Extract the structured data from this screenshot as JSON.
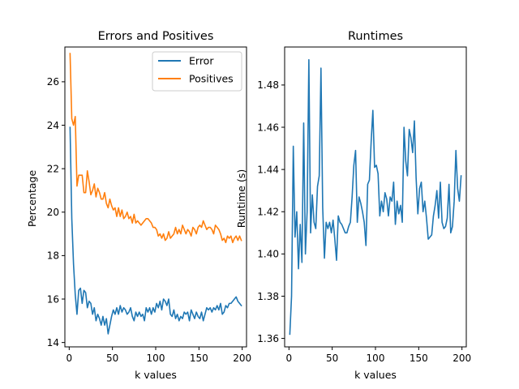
{
  "chart_data": [
    {
      "type": "line",
      "title": "Errors and Positives",
      "xlabel": "k values",
      "ylabel": "Percentage",
      "xlim": [
        -5,
        205
      ],
      "ylim": [
        13.8,
        27.6
      ],
      "xticks": [
        0,
        50,
        100,
        150,
        200
      ],
      "yticks": [
        14,
        16,
        18,
        20,
        22,
        24,
        26
      ],
      "legend": "top-right",
      "grid": false,
      "series": [
        {
          "name": "Error",
          "color": "#1f77b4",
          "x": [
            1,
            3,
            5,
            7,
            9,
            11,
            13,
            15,
            17,
            19,
            21,
            23,
            25,
            27,
            29,
            31,
            33,
            35,
            37,
            39,
            41,
            43,
            45,
            47,
            49,
            51,
            53,
            55,
            57,
            59,
            61,
            63,
            65,
            67,
            69,
            71,
            73,
            75,
            77,
            79,
            81,
            83,
            85,
            87,
            89,
            91,
            93,
            95,
            97,
            99,
            101,
            103,
            105,
            107,
            109,
            111,
            113,
            115,
            117,
            119,
            121,
            123,
            125,
            127,
            129,
            131,
            133,
            135,
            137,
            139,
            141,
            143,
            145,
            147,
            149,
            151,
            153,
            155,
            157,
            159,
            161,
            163,
            165,
            167,
            169,
            171,
            173,
            175,
            177,
            179,
            181,
            183,
            185,
            187,
            189,
            191,
            193,
            195,
            197,
            199
          ],
          "values": [
            23.9,
            19.7,
            17.6,
            16.2,
            15.3,
            16.4,
            16.5,
            15.8,
            16.4,
            16.3,
            15.6,
            15.9,
            15.8,
            15.3,
            15.6,
            15.0,
            15.3,
            15.1,
            14.8,
            15.2,
            14.8,
            15.1,
            14.4,
            14.8,
            15.2,
            15.5,
            15.3,
            15.6,
            15.3,
            15.7,
            15.4,
            15.6,
            15.5,
            15.3,
            15.4,
            15.6,
            15.2,
            15.0,
            15.4,
            15.2,
            15.4,
            15.2,
            15.3,
            15.0,
            15.6,
            15.4,
            15.6,
            15.3,
            15.6,
            15.4,
            15.8,
            15.6,
            15.9,
            15.5,
            16.0,
            15.9,
            15.7,
            16.0,
            15.3,
            15.2,
            15.5,
            15.1,
            15.3,
            15.0,
            15.2,
            15.1,
            15.4,
            15.3,
            15.4,
            15.0,
            15.5,
            15.3,
            15.1,
            15.4,
            15.2,
            15.1,
            15.4,
            15.0,
            15.3,
            15.6,
            15.5,
            15.6,
            15.4,
            15.6,
            15.5,
            15.7,
            15.5,
            15.8,
            15.3,
            15.4,
            15.7,
            15.6,
            15.8,
            15.8,
            15.9,
            16.0,
            16.1,
            15.9,
            15.8,
            15.7
          ]
        },
        {
          "name": "Positives",
          "color": "#ff7f0e",
          "x": [
            1,
            3,
            5,
            7,
            9,
            11,
            13,
            15,
            17,
            19,
            21,
            23,
            25,
            27,
            29,
            31,
            33,
            35,
            37,
            39,
            41,
            43,
            45,
            47,
            49,
            51,
            53,
            55,
            57,
            59,
            61,
            63,
            65,
            67,
            69,
            71,
            73,
            75,
            77,
            79,
            81,
            83,
            85,
            87,
            89,
            91,
            93,
            95,
            97,
            99,
            101,
            103,
            105,
            107,
            109,
            111,
            113,
            115,
            117,
            119,
            121,
            123,
            125,
            127,
            129,
            131,
            133,
            135,
            137,
            139,
            141,
            143,
            145,
            147,
            149,
            151,
            153,
            155,
            157,
            159,
            161,
            163,
            165,
            167,
            169,
            171,
            173,
            175,
            177,
            179,
            181,
            183,
            185,
            187,
            189,
            191,
            193,
            195,
            197,
            199
          ],
          "values": [
            27.3,
            24.3,
            24.0,
            24.4,
            21.2,
            21.7,
            21.7,
            21.7,
            20.9,
            20.9,
            21.9,
            21.4,
            20.8,
            21.0,
            21.3,
            20.7,
            21.1,
            20.9,
            20.6,
            20.6,
            20.9,
            20.4,
            20.2,
            20.6,
            20.3,
            20.1,
            20.2,
            19.8,
            20.2,
            19.8,
            20.1,
            19.7,
            19.8,
            20.0,
            19.7,
            19.8,
            19.5,
            19.9,
            19.5,
            19.6,
            19.5,
            19.4,
            19.5,
            19.6,
            19.7,
            19.7,
            19.6,
            19.5,
            19.3,
            19.3,
            19.2,
            18.9,
            19.0,
            18.8,
            19.0,
            18.7,
            18.8,
            19.1,
            18.8,
            18.9,
            19.0,
            19.3,
            19.0,
            19.2,
            19.0,
            19.4,
            19.2,
            19.0,
            19.2,
            19.1,
            18.9,
            19.3,
            19.2,
            19.0,
            19.3,
            19.4,
            19.3,
            19.6,
            19.4,
            19.2,
            19.3,
            19.3,
            19.2,
            19.0,
            19.4,
            19.3,
            19.2,
            19.0,
            18.7,
            18.8,
            18.6,
            18.9,
            18.8,
            18.9,
            18.6,
            18.8,
            18.9,
            18.7,
            18.9,
            18.7
          ]
        }
      ]
    },
    {
      "type": "line",
      "title": "Runtimes",
      "xlabel": "k values",
      "ylabel": "Runtime (s)",
      "xlim": [
        -5,
        205
      ],
      "ylim": [
        1.356,
        1.498
      ],
      "xticks": [
        0,
        50,
        100,
        150,
        200
      ],
      "yticks": [
        1.36,
        1.38,
        1.4,
        1.42,
        1.44,
        1.46,
        1.48
      ],
      "grid": false,
      "series": [
        {
          "color": "#1f77b4",
          "x": [
            1,
            3,
            5,
            7,
            9,
            11,
            13,
            15,
            17,
            19,
            21,
            23,
            25,
            27,
            29,
            31,
            33,
            35,
            37,
            39,
            41,
            43,
            45,
            47,
            49,
            51,
            53,
            55,
            57,
            59,
            61,
            63,
            65,
            67,
            69,
            71,
            73,
            75,
            77,
            79,
            81,
            83,
            85,
            87,
            89,
            91,
            93,
            95,
            97,
            99,
            101,
            103,
            105,
            107,
            109,
            111,
            113,
            115,
            117,
            119,
            121,
            123,
            125,
            127,
            129,
            131,
            133,
            135,
            137,
            139,
            141,
            143,
            145,
            147,
            149,
            151,
            153,
            155,
            157,
            159,
            161,
            163,
            165,
            167,
            169,
            171,
            173,
            175,
            177,
            179,
            181,
            183,
            185,
            187,
            189,
            191,
            193,
            195,
            197,
            199
          ],
          "values": [
            1.362,
            1.38,
            1.451,
            1.408,
            1.42,
            1.393,
            1.414,
            1.396,
            1.462,
            1.4,
            1.42,
            1.492,
            1.41,
            1.428,
            1.415,
            1.412,
            1.432,
            1.437,
            1.488,
            1.422,
            1.398,
            1.415,
            1.412,
            1.415,
            1.41,
            1.416,
            1.407,
            1.397,
            1.418,
            1.415,
            1.414,
            1.412,
            1.41,
            1.41,
            1.413,
            1.415,
            1.427,
            1.442,
            1.449,
            1.415,
            1.427,
            1.424,
            1.42,
            1.415,
            1.404,
            1.433,
            1.435,
            1.453,
            1.468,
            1.441,
            1.442,
            1.438,
            1.418,
            1.425,
            1.42,
            1.429,
            1.426,
            1.418,
            1.427,
            1.425,
            1.434,
            1.414,
            1.425,
            1.419,
            1.423,
            1.415,
            1.46,
            1.444,
            1.437,
            1.459,
            1.455,
            1.448,
            1.463,
            1.436,
            1.419,
            1.431,
            1.434,
            1.42,
            1.425,
            1.417,
            1.407,
            1.408,
            1.409,
            1.418,
            1.423,
            1.43,
            1.417,
            1.434,
            1.415,
            1.412,
            1.413,
            1.417,
            1.433,
            1.41,
            1.413,
            1.425,
            1.449,
            1.431,
            1.425,
            1.437
          ]
        }
      ]
    }
  ]
}
